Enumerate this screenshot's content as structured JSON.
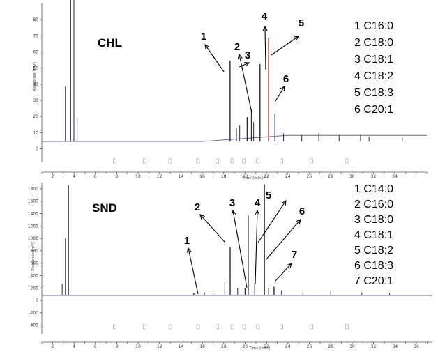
{
  "chart_data": [
    {
      "type": "line",
      "panel_label": "CHL",
      "xlabel": "Time [min]",
      "ylabel": "Response [mV]",
      "x_ticks": [
        2,
        4,
        6,
        8,
        10,
        12,
        14,
        16,
        18,
        20,
        22,
        24,
        26,
        28,
        30,
        32,
        34
      ],
      "y_ticks": [
        0,
        10,
        20,
        30,
        40,
        50,
        60,
        70,
        80
      ],
      "xlim": [
        1,
        37
      ],
      "ylim": [
        -8,
        90
      ],
      "legend": [
        "1 C16:0",
        "2 C18:0",
        "3 C18:1",
        "4 C18:2",
        "5 C18:3",
        "6 C20:1"
      ],
      "peaks": [
        {
          "label": "1",
          "x": 18.6,
          "y": 50
        },
        {
          "label": "2",
          "x": 20.2,
          "y": 15
        },
        {
          "label": "3",
          "x": 20.6,
          "y": 20
        },
        {
          "label": "4",
          "x": 21.4,
          "y": 48
        },
        {
          "label": "5",
          "x": 22.2,
          "y": 64
        },
        {
          "label": "6",
          "x": 22.8,
          "y": 17
        }
      ]
    },
    {
      "type": "line",
      "panel_label": "SND",
      "xlabel": "Time [min]",
      "ylabel": "Response [mV]",
      "x_ticks": [
        2,
        4,
        6,
        8,
        10,
        12,
        14,
        16,
        18,
        20,
        22,
        24,
        26,
        28,
        30,
        32,
        34,
        36
      ],
      "y_ticks": [
        -400,
        -200,
        0,
        200,
        400,
        600,
        800,
        1000,
        1200,
        1400,
        1600,
        1800
      ],
      "xlim": [
        1,
        37.5
      ],
      "ylim": [
        -550,
        1900
      ],
      "legend": [
        "1 C14:0",
        "2 C16:0",
        "3 C18:0",
        "4 C18:1",
        "5 C18:2",
        "6 C18:3",
        "7 C20:1"
      ],
      "peaks": [
        {
          "label": "1",
          "x": 15.2,
          "y": 40
        },
        {
          "label": "2",
          "x": 18.6,
          "y": 780
        },
        {
          "label": "3",
          "x": 20.0,
          "y": 120
        },
        {
          "label": "4",
          "x": 20.9,
          "y": 200
        },
        {
          "label": "5",
          "x": 21.8,
          "y": 1790
        },
        {
          "label": "6",
          "x": 22.2,
          "y": 120
        },
        {
          "label": "7",
          "x": 22.7,
          "y": 140
        }
      ]
    }
  ]
}
